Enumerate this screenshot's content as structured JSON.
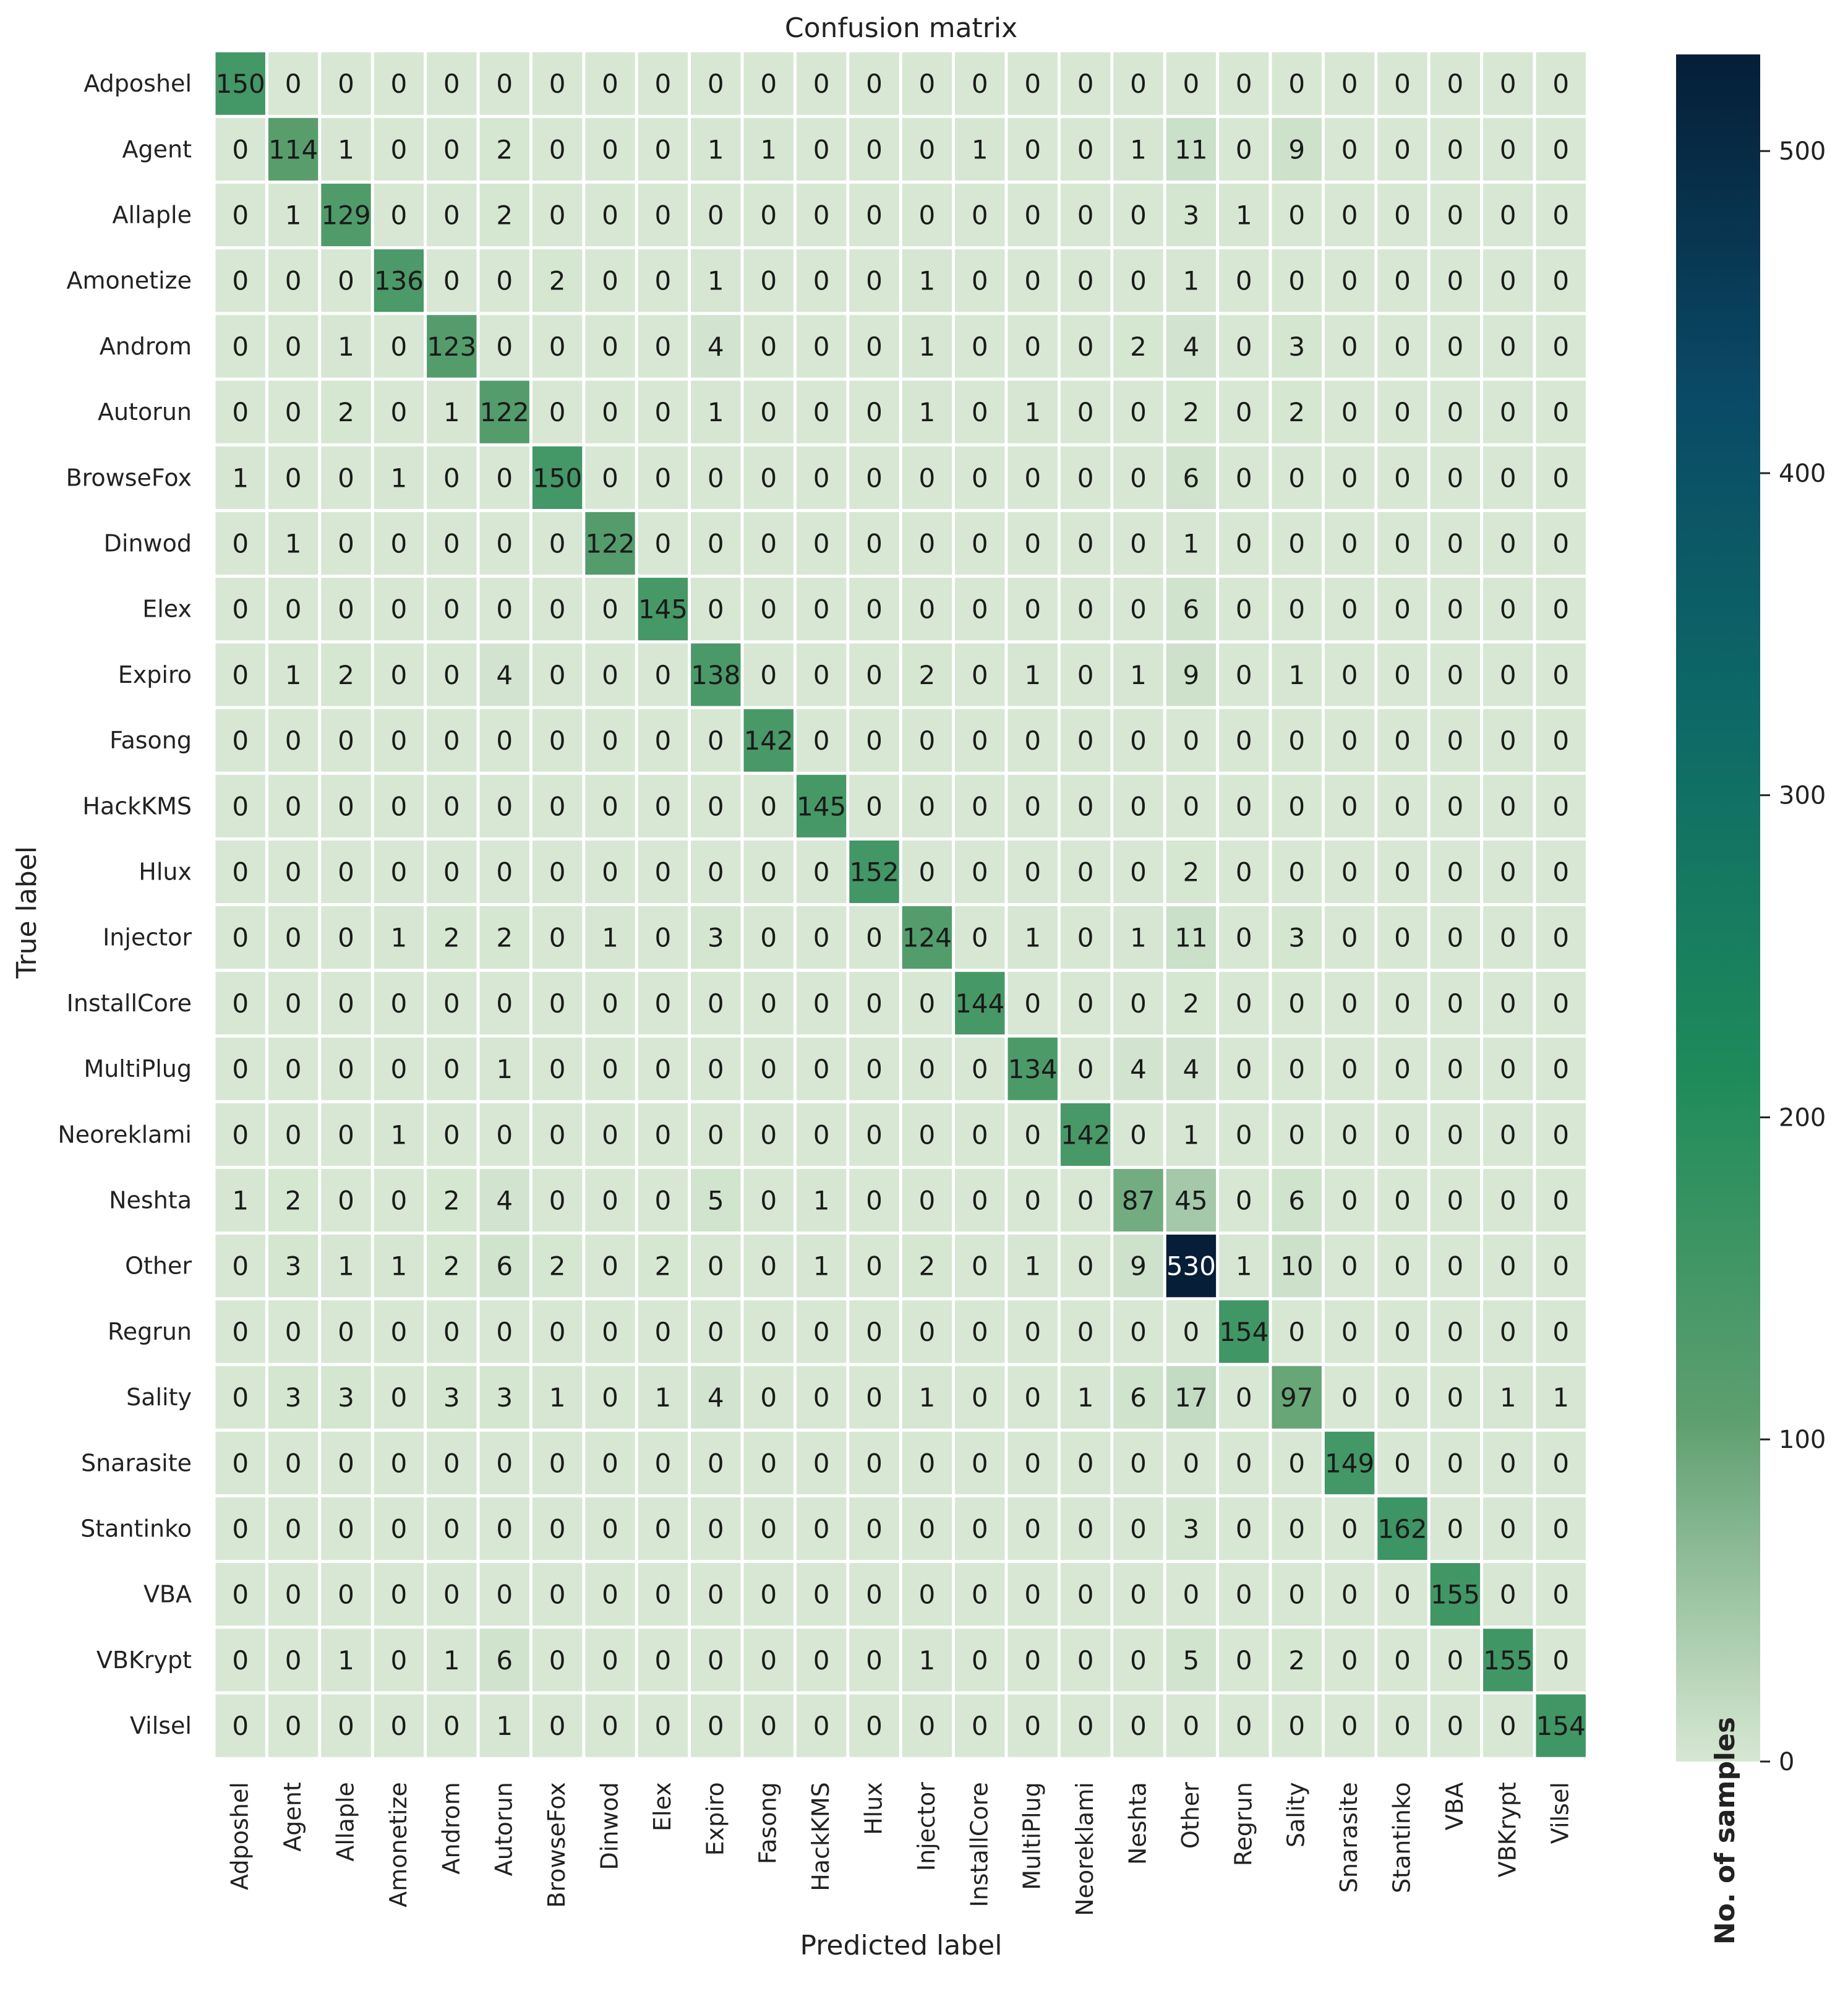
{
  "chart_data": {
    "type": "heatmap",
    "title": "Confusion matrix",
    "xlabel": "Predicted label",
    "ylabel": "True label",
    "colorbar_label": "No. of samples",
    "colorbar_ticks": [
      0,
      100,
      200,
      300,
      400,
      500
    ],
    "colorbar_range": [
      0,
      530
    ],
    "colormap": [
      "#d7e7d3",
      "#5e9f6f",
      "#1f8b5a",
      "#0e6b66",
      "#0a4a66",
      "#061e38"
    ],
    "labels": [
      "Adposhel",
      "Agent",
      "Allaple",
      "Amonetize",
      "Androm",
      "Autorun",
      "BrowseFox",
      "Dinwod",
      "Elex",
      "Expiro",
      "Fasong",
      "HackKMS",
      "Hlux",
      "Injector",
      "InstallCore",
      "MultiPlug",
      "Neoreklami",
      "Neshta",
      "Other",
      "Regrun",
      "Sality",
      "Snarasite",
      "Stantinko",
      "VBA",
      "VBKrypt",
      "Vilsel"
    ],
    "matrix": [
      [
        150,
        0,
        0,
        0,
        0,
        0,
        0,
        0,
        0,
        0,
        0,
        0,
        0,
        0,
        0,
        0,
        0,
        0,
        0,
        0,
        0,
        0,
        0,
        0,
        0,
        0
      ],
      [
        0,
        114,
        1,
        0,
        0,
        2,
        0,
        0,
        0,
        1,
        1,
        0,
        0,
        0,
        1,
        0,
        0,
        1,
        11,
        0,
        9,
        0,
        0,
        0,
        0,
        0
      ],
      [
        0,
        1,
        129,
        0,
        0,
        2,
        0,
        0,
        0,
        0,
        0,
        0,
        0,
        0,
        0,
        0,
        0,
        0,
        3,
        1,
        0,
        0,
        0,
        0,
        0,
        0
      ],
      [
        0,
        0,
        0,
        136,
        0,
        0,
        2,
        0,
        0,
        1,
        0,
        0,
        0,
        1,
        0,
        0,
        0,
        0,
        1,
        0,
        0,
        0,
        0,
        0,
        0,
        0
      ],
      [
        0,
        0,
        1,
        0,
        123,
        0,
        0,
        0,
        0,
        4,
        0,
        0,
        0,
        1,
        0,
        0,
        0,
        2,
        4,
        0,
        3,
        0,
        0,
        0,
        0,
        0
      ],
      [
        0,
        0,
        2,
        0,
        1,
        122,
        0,
        0,
        0,
        1,
        0,
        0,
        0,
        1,
        0,
        1,
        0,
        0,
        2,
        0,
        2,
        0,
        0,
        0,
        0,
        0
      ],
      [
        1,
        0,
        0,
        1,
        0,
        0,
        150,
        0,
        0,
        0,
        0,
        0,
        0,
        0,
        0,
        0,
        0,
        0,
        6,
        0,
        0,
        0,
        0,
        0,
        0,
        0
      ],
      [
        0,
        1,
        0,
        0,
        0,
        0,
        0,
        122,
        0,
        0,
        0,
        0,
        0,
        0,
        0,
        0,
        0,
        0,
        1,
        0,
        0,
        0,
        0,
        0,
        0,
        0
      ],
      [
        0,
        0,
        0,
        0,
        0,
        0,
        0,
        0,
        145,
        0,
        0,
        0,
        0,
        0,
        0,
        0,
        0,
        0,
        6,
        0,
        0,
        0,
        0,
        0,
        0,
        0
      ],
      [
        0,
        1,
        2,
        0,
        0,
        4,
        0,
        0,
        0,
        138,
        0,
        0,
        0,
        2,
        0,
        1,
        0,
        1,
        9,
        0,
        1,
        0,
        0,
        0,
        0,
        0
      ],
      [
        0,
        0,
        0,
        0,
        0,
        0,
        0,
        0,
        0,
        0,
        142,
        0,
        0,
        0,
        0,
        0,
        0,
        0,
        0,
        0,
        0,
        0,
        0,
        0,
        0,
        0
      ],
      [
        0,
        0,
        0,
        0,
        0,
        0,
        0,
        0,
        0,
        0,
        0,
        145,
        0,
        0,
        0,
        0,
        0,
        0,
        0,
        0,
        0,
        0,
        0,
        0,
        0,
        0
      ],
      [
        0,
        0,
        0,
        0,
        0,
        0,
        0,
        0,
        0,
        0,
        0,
        0,
        152,
        0,
        0,
        0,
        0,
        0,
        2,
        0,
        0,
        0,
        0,
        0,
        0,
        0
      ],
      [
        0,
        0,
        0,
        1,
        2,
        2,
        0,
        1,
        0,
        3,
        0,
        0,
        0,
        124,
        0,
        1,
        0,
        1,
        11,
        0,
        3,
        0,
        0,
        0,
        0,
        0
      ],
      [
        0,
        0,
        0,
        0,
        0,
        0,
        0,
        0,
        0,
        0,
        0,
        0,
        0,
        0,
        144,
        0,
        0,
        0,
        2,
        0,
        0,
        0,
        0,
        0,
        0,
        0
      ],
      [
        0,
        0,
        0,
        0,
        0,
        1,
        0,
        0,
        0,
        0,
        0,
        0,
        0,
        0,
        0,
        134,
        0,
        4,
        4,
        0,
        0,
        0,
        0,
        0,
        0,
        0
      ],
      [
        0,
        0,
        0,
        1,
        0,
        0,
        0,
        0,
        0,
        0,
        0,
        0,
        0,
        0,
        0,
        0,
        142,
        0,
        1,
        0,
        0,
        0,
        0,
        0,
        0,
        0
      ],
      [
        1,
        2,
        0,
        0,
        2,
        4,
        0,
        0,
        0,
        5,
        0,
        1,
        0,
        0,
        0,
        0,
        0,
        87,
        45,
        0,
        6,
        0,
        0,
        0,
        0,
        0
      ],
      [
        0,
        3,
        1,
        1,
        2,
        6,
        2,
        0,
        2,
        0,
        0,
        1,
        0,
        2,
        0,
        1,
        0,
        9,
        530,
        1,
        10,
        0,
        0,
        0,
        0,
        0
      ],
      [
        0,
        0,
        0,
        0,
        0,
        0,
        0,
        0,
        0,
        0,
        0,
        0,
        0,
        0,
        0,
        0,
        0,
        0,
        0,
        154,
        0,
        0,
        0,
        0,
        0,
        0
      ],
      [
        0,
        3,
        3,
        0,
        3,
        3,
        1,
        0,
        1,
        4,
        0,
        0,
        0,
        1,
        0,
        0,
        1,
        6,
        17,
        0,
        97,
        0,
        0,
        0,
        1,
        1
      ],
      [
        0,
        0,
        0,
        0,
        0,
        0,
        0,
        0,
        0,
        0,
        0,
        0,
        0,
        0,
        0,
        0,
        0,
        0,
        0,
        0,
        0,
        149,
        0,
        0,
        0,
        0
      ],
      [
        0,
        0,
        0,
        0,
        0,
        0,
        0,
        0,
        0,
        0,
        0,
        0,
        0,
        0,
        0,
        0,
        0,
        0,
        3,
        0,
        0,
        0,
        162,
        0,
        0,
        0
      ],
      [
        0,
        0,
        0,
        0,
        0,
        0,
        0,
        0,
        0,
        0,
        0,
        0,
        0,
        0,
        0,
        0,
        0,
        0,
        0,
        0,
        0,
        0,
        0,
        155,
        0,
        0
      ],
      [
        0,
        0,
        1,
        0,
        1,
        6,
        0,
        0,
        0,
        0,
        0,
        0,
        0,
        1,
        0,
        0,
        0,
        0,
        5,
        0,
        2,
        0,
        0,
        0,
        155,
        0
      ],
      [
        0,
        0,
        0,
        0,
        0,
        1,
        0,
        0,
        0,
        0,
        0,
        0,
        0,
        0,
        0,
        0,
        0,
        0,
        0,
        0,
        0,
        0,
        0,
        0,
        0,
        154
      ]
    ]
  }
}
